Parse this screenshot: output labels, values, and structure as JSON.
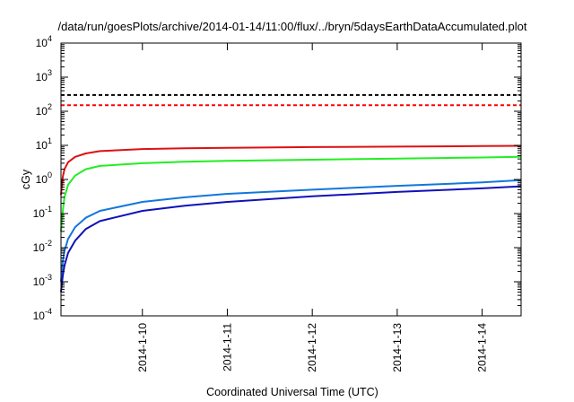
{
  "chart_data": {
    "type": "line",
    "title": "/data/run/goesPlots/archive/2014-01-14/11:00/flux/../bryn/5daysEarthDataAccumulated.plot",
    "xlabel": "Coordinated Universal Time (UTC)",
    "ylabel": "cGy",
    "yscale": "log",
    "ylim": [
      0.0001,
      10000
    ],
    "xlim": [
      "2014-01-09T01:00",
      "2014-01-14T11:00"
    ],
    "grid": false,
    "legend": "none",
    "x_ticks": [
      "2014-1-10",
      "2014-1-11",
      "2014-1-12",
      "2014-1-13",
      "2014-1-14"
    ],
    "y_ticks": [
      {
        "base": "10",
        "exp": "-4",
        "value": 0.0001
      },
      {
        "base": "10",
        "exp": "-3",
        "value": 0.001
      },
      {
        "base": "10",
        "exp": "-2",
        "value": 0.01
      },
      {
        "base": "10",
        "exp": "-1",
        "value": 0.1
      },
      {
        "base": "10",
        "exp": "0",
        "value": 1
      },
      {
        "base": "10",
        "exp": "1",
        "value": 10
      },
      {
        "base": "10",
        "exp": "2",
        "value": 100
      },
      {
        "base": "10",
        "exp": "3",
        "value": 1000
      },
      {
        "base": "10",
        "exp": "4",
        "value": 10000
      }
    ],
    "thresholds": [
      {
        "value": 300,
        "color": "#000000",
        "style": "dashed"
      },
      {
        "value": 150,
        "color": "#ff0000",
        "style": "dashed"
      }
    ],
    "series": [
      {
        "color": "#dd1111",
        "x": [
          "2014-01-09T01:00",
          "2014-01-09T01:30",
          "2014-01-09T02:00",
          "2014-01-09T03:00",
          "2014-01-09T05:00",
          "2014-01-09T08:00",
          "2014-01-09T12:00",
          "2014-01-10T00:00",
          "2014-01-10T12:00",
          "2014-01-11T00:00",
          "2014-01-12T00:00",
          "2014-01-13T00:00",
          "2014-01-14T00:00",
          "2014-01-14T11:00"
        ],
        "y": [
          0.35,
          1.2,
          2.0,
          3.2,
          4.6,
          5.8,
          6.8,
          7.8,
          8.2,
          8.5,
          8.9,
          9.2,
          9.5,
          9.7
        ]
      },
      {
        "color": "#22ee22",
        "x": [
          "2014-01-09T01:00",
          "2014-01-09T01:30",
          "2014-01-09T02:00",
          "2014-01-09T03:00",
          "2014-01-09T05:00",
          "2014-01-09T08:00",
          "2014-01-09T12:00",
          "2014-01-10T00:00",
          "2014-01-10T12:00",
          "2014-01-11T00:00",
          "2014-01-12T00:00",
          "2014-01-13T00:00",
          "2014-01-14T00:00",
          "2014-01-14T11:00"
        ],
        "y": [
          0.03,
          0.12,
          0.3,
          0.7,
          1.3,
          2.0,
          2.5,
          3.0,
          3.3,
          3.5,
          3.8,
          4.1,
          4.4,
          4.6
        ]
      },
      {
        "color": "#1177dd",
        "x": [
          "2014-01-09T01:00",
          "2014-01-09T01:30",
          "2014-01-09T02:00",
          "2014-01-09T03:00",
          "2014-01-09T05:00",
          "2014-01-09T08:00",
          "2014-01-09T12:00",
          "2014-01-10T00:00",
          "2014-01-10T12:00",
          "2014-01-11T00:00",
          "2014-01-12T00:00",
          "2014-01-13T00:00",
          "2014-01-14T00:00",
          "2014-01-14T11:00"
        ],
        "y": [
          0.001,
          0.004,
          0.008,
          0.018,
          0.04,
          0.075,
          0.12,
          0.22,
          0.3,
          0.38,
          0.5,
          0.65,
          0.82,
          0.95
        ]
      },
      {
        "color": "#1111bb",
        "x": [
          "2014-01-09T01:00",
          "2014-01-09T01:30",
          "2014-01-09T02:00",
          "2014-01-09T03:00",
          "2014-01-09T05:00",
          "2014-01-09T08:00",
          "2014-01-09T12:00",
          "2014-01-10T00:00",
          "2014-01-10T12:00",
          "2014-01-11T00:00",
          "2014-01-12T00:00",
          "2014-01-13T00:00",
          "2014-01-14T00:00",
          "2014-01-14T11:00"
        ],
        "y": [
          0.0005,
          0.0015,
          0.003,
          0.007,
          0.016,
          0.035,
          0.06,
          0.12,
          0.17,
          0.22,
          0.32,
          0.43,
          0.55,
          0.63
        ]
      }
    ]
  }
}
